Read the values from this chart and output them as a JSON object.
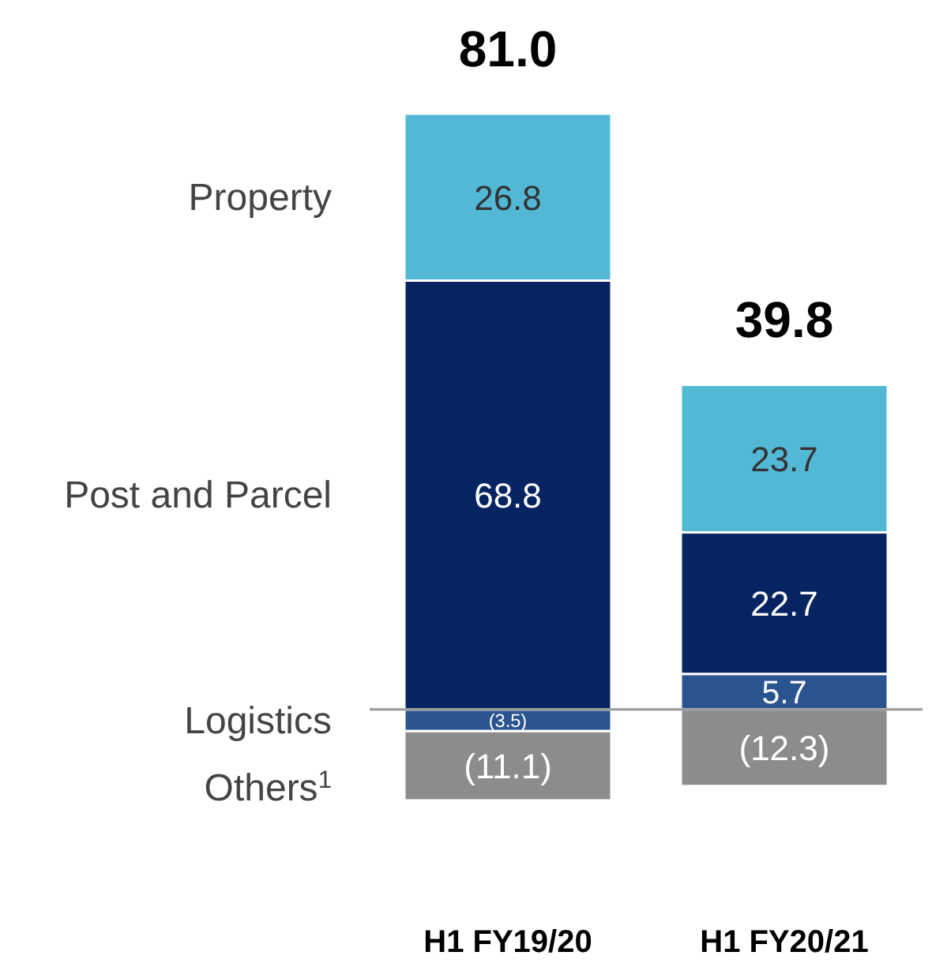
{
  "chart_data": {
    "type": "bar",
    "stacked": true,
    "categories": [
      "H1 FY19/20",
      "H1 FY20/21"
    ],
    "series": [
      {
        "name": "Logistics",
        "color": "#2a5490",
        "values": [
          -3.5,
          5.7
        ],
        "value_labels": [
          "(3.5)",
          "5.7"
        ]
      },
      {
        "name": "Others$^{1}$",
        "color": "#8c8c8c",
        "values": [
          -11.1,
          -12.3
        ],
        "value_labels": [
          "(11.1)",
          "(12.3)"
        ]
      },
      {
        "name": "Post and Parcel",
        "color": "#062462",
        "values": [
          68.8,
          22.7
        ],
        "value_labels": [
          "68.8",
          "22.7"
        ]
      },
      {
        "name": "Property",
        "color": "#52b8d6",
        "values": [
          26.8,
          23.7
        ],
        "value_labels": [
          "26.8",
          "23.7"
        ]
      }
    ],
    "totals": [
      "81.0",
      "39.8"
    ],
    "ref_lines": [
      {
        "axis": "y",
        "value": 0,
        "color": "#999999"
      }
    ]
  }
}
